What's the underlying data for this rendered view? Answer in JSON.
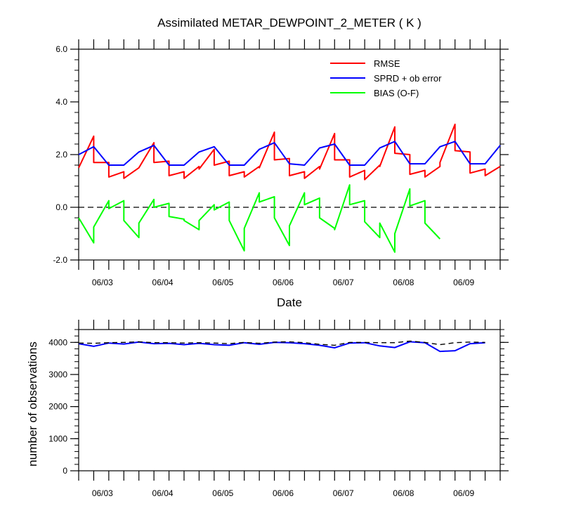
{
  "chart_data": [
    {
      "type": "line",
      "title": "Assimilated METAR_DEWPOINT_2_METER ( K )",
      "xlabel": "Date",
      "ylabel": "",
      "x_tick_labels": [
        "06/03",
        "06/04",
        "06/05",
        "06/06",
        "06/07",
        "06/08",
        "06/09"
      ],
      "y_tick_labels": [
        "6.0",
        "4.0",
        "2.0",
        "0.0",
        "-2.0"
      ],
      "ylim": [
        -2.0,
        6.0
      ],
      "legend": "top-right",
      "reference_line": 0.0,
      "series": [
        {
          "name": "RMSE",
          "color": "#ff0000",
          "points": [
            [
              0.0,
              1.5
            ],
            [
              0.25,
              2.7
            ],
            [
              0.25,
              1.7
            ],
            [
              0.5,
              1.7
            ],
            [
              0.5,
              1.15
            ],
            [
              0.75,
              1.35
            ],
            [
              0.75,
              1.1
            ],
            [
              1.0,
              1.5
            ],
            [
              1.0,
              1.5
            ],
            [
              1.25,
              2.45
            ],
            [
              1.25,
              1.7
            ],
            [
              1.5,
              1.75
            ],
            [
              1.5,
              1.2
            ],
            [
              1.75,
              1.35
            ],
            [
              1.75,
              1.1
            ],
            [
              2.0,
              1.55
            ],
            [
              2.0,
              1.45
            ],
            [
              2.25,
              2.2
            ],
            [
              2.25,
              1.6
            ],
            [
              2.5,
              1.75
            ],
            [
              2.5,
              1.2
            ],
            [
              2.75,
              1.35
            ],
            [
              2.75,
              1.15
            ],
            [
              3.0,
              1.55
            ],
            [
              3.0,
              1.5
            ],
            [
              3.25,
              2.85
            ],
            [
              3.25,
              1.8
            ],
            [
              3.5,
              1.85
            ],
            [
              3.5,
              1.2
            ],
            [
              3.75,
              1.35
            ],
            [
              3.75,
              1.1
            ],
            [
              4.0,
              1.55
            ],
            [
              4.0,
              1.45
            ],
            [
              4.25,
              2.8
            ],
            [
              4.25,
              1.8
            ],
            [
              4.5,
              1.8
            ],
            [
              4.5,
              1.15
            ],
            [
              4.75,
              1.4
            ],
            [
              4.75,
              1.05
            ],
            [
              5.0,
              1.6
            ],
            [
              5.0,
              1.55
            ],
            [
              5.25,
              3.05
            ],
            [
              5.25,
              2.05
            ],
            [
              5.5,
              2.0
            ],
            [
              5.5,
              1.25
            ],
            [
              5.75,
              1.4
            ],
            [
              5.75,
              1.15
            ],
            [
              6.0,
              1.55
            ],
            [
              6.0,
              1.7
            ],
            [
              6.25,
              3.15
            ],
            [
              6.25,
              2.15
            ],
            [
              6.5,
              2.1
            ],
            [
              6.5,
              1.3
            ],
            [
              6.75,
              1.45
            ],
            [
              6.75,
              1.2
            ],
            [
              7.0,
              1.55
            ]
          ]
        },
        {
          "name": "SPRD + ob error",
          "color": "#0000ff",
          "points": [
            [
              0.0,
              2.0
            ],
            [
              0.25,
              2.3
            ],
            [
              0.5,
              1.6
            ],
            [
              0.75,
              1.6
            ],
            [
              1.0,
              2.1
            ],
            [
              1.25,
              2.35
            ],
            [
              1.5,
              1.6
            ],
            [
              1.75,
              1.6
            ],
            [
              2.0,
              2.1
            ],
            [
              2.25,
              2.3
            ],
            [
              2.5,
              1.6
            ],
            [
              2.75,
              1.6
            ],
            [
              3.0,
              2.2
            ],
            [
              3.25,
              2.45
            ],
            [
              3.5,
              1.65
            ],
            [
              3.75,
              1.6
            ],
            [
              4.0,
              2.25
            ],
            [
              4.25,
              2.4
            ],
            [
              4.5,
              1.6
            ],
            [
              4.75,
              1.6
            ],
            [
              5.0,
              2.25
            ],
            [
              5.25,
              2.5
            ],
            [
              5.5,
              1.65
            ],
            [
              5.75,
              1.65
            ],
            [
              6.0,
              2.3
            ],
            [
              6.25,
              2.5
            ],
            [
              6.5,
              1.65
            ],
            [
              6.75,
              1.65
            ],
            [
              7.0,
              2.35
            ]
          ]
        },
        {
          "name": "BIAS (O-F)",
          "color": "#00ff00",
          "points": [
            [
              0.0,
              -0.4
            ],
            [
              0.25,
              -1.35
            ],
            [
              0.25,
              -0.75
            ],
            [
              0.5,
              0.25
            ],
            [
              0.5,
              -0.05
            ],
            [
              0.75,
              0.25
            ],
            [
              0.75,
              -0.5
            ],
            [
              1.0,
              -1.15
            ],
            [
              1.0,
              -0.6
            ],
            [
              1.25,
              0.3
            ],
            [
              1.25,
              0.0
            ],
            [
              1.5,
              0.15
            ],
            [
              1.5,
              -0.35
            ],
            [
              1.75,
              -0.45
            ],
            [
              1.75,
              -0.5
            ],
            [
              2.0,
              -0.85
            ],
            [
              2.0,
              -0.5
            ],
            [
              2.25,
              0.1
            ],
            [
              2.25,
              -0.1
            ],
            [
              2.5,
              0.2
            ],
            [
              2.5,
              -0.5
            ],
            [
              2.75,
              -1.65
            ],
            [
              2.75,
              -0.8
            ],
            [
              3.0,
              0.55
            ],
            [
              3.0,
              0.2
            ],
            [
              3.25,
              0.4
            ],
            [
              3.25,
              -0.4
            ],
            [
              3.5,
              -1.45
            ],
            [
              3.5,
              -0.7
            ],
            [
              3.75,
              0.55
            ],
            [
              3.75,
              0.1
            ],
            [
              4.0,
              0.35
            ],
            [
              4.0,
              -0.4
            ],
            [
              4.25,
              -0.8
            ],
            [
              4.25,
              -0.85
            ],
            [
              4.5,
              0.85
            ],
            [
              4.5,
              0.1
            ],
            [
              4.75,
              0.25
            ],
            [
              4.75,
              -0.55
            ],
            [
              5.0,
              -1.15
            ],
            [
              5.0,
              -0.6
            ],
            [
              5.25,
              -1.7
            ],
            [
              5.25,
              -1.0
            ],
            [
              5.5,
              0.7
            ],
            [
              5.5,
              0.05
            ],
            [
              5.75,
              0.25
            ],
            [
              5.75,
              -0.6
            ],
            [
              6.0,
              -1.2
            ]
          ]
        }
      ]
    },
    {
      "type": "line",
      "title": "",
      "xlabel": "",
      "ylabel": "number of observations",
      "x_tick_labels": [
        "06/03",
        "06/04",
        "06/05",
        "06/06",
        "06/07",
        "06/08",
        "06/09"
      ],
      "y_tick_labels": [
        "4000",
        "3000",
        "2000",
        "1000",
        "0"
      ],
      "ylim": [
        0,
        4400
      ],
      "series": [
        {
          "name": "",
          "color": "#0000ff",
          "points": [
            [
              0.0,
              3960
            ],
            [
              0.5,
              3880
            ],
            [
              1.0,
              3980
            ],
            [
              1.5,
              3950
            ],
            [
              2.0,
              4010
            ],
            [
              2.5,
              3960
            ],
            [
              3.0,
              3970
            ],
            [
              3.5,
              3930
            ],
            [
              4.0,
              3970
            ],
            [
              4.5,
              3930
            ],
            [
              5.0,
              3910
            ],
            [
              5.5,
              3990
            ],
            [
              6.0,
              3940
            ],
            [
              6.5,
              4000
            ],
            [
              7.0,
              3990
            ],
            [
              7.5,
              3960
            ],
            [
              8.0,
              3910
            ],
            [
              8.5,
              3830
            ],
            [
              9.0,
              3980
            ],
            [
              9.5,
              3990
            ],
            [
              10.0,
              3890
            ],
            [
              10.5,
              3840
            ],
            [
              11.0,
              4020
            ],
            [
              11.5,
              3990
            ],
            [
              12.0,
              3720
            ],
            [
              12.5,
              3740
            ],
            [
              13.0,
              3960
            ],
            [
              13.5,
              3990
            ]
          ]
        },
        {
          "name": "",
          "color": "#000000",
          "dashed": true,
          "points": [
            [
              0.0,
              3980
            ],
            [
              0.5,
              3970
            ],
            [
              1.0,
              3990
            ],
            [
              1.5,
              4000
            ],
            [
              2.0,
              4020
            ],
            [
              2.5,
              3990
            ],
            [
              3.0,
              3990
            ],
            [
              3.5,
              3980
            ],
            [
              4.0,
              3990
            ],
            [
              4.5,
              3980
            ],
            [
              5.0,
              3960
            ],
            [
              5.5,
              4000
            ],
            [
              6.0,
              3970
            ],
            [
              6.5,
              4010
            ],
            [
              7.0,
              4020
            ],
            [
              7.5,
              3990
            ],
            [
              8.0,
              3940
            ],
            [
              8.5,
              3910
            ],
            [
              9.0,
              4000
            ],
            [
              9.5,
              4000
            ],
            [
              10.0,
              3990
            ],
            [
              10.5,
              3990
            ],
            [
              11.0,
              4040
            ],
            [
              11.5,
              4000
            ],
            [
              12.0,
              3930
            ],
            [
              12.5,
              3990
            ],
            [
              13.0,
              4010
            ],
            [
              13.5,
              4000
            ]
          ]
        }
      ]
    }
  ]
}
